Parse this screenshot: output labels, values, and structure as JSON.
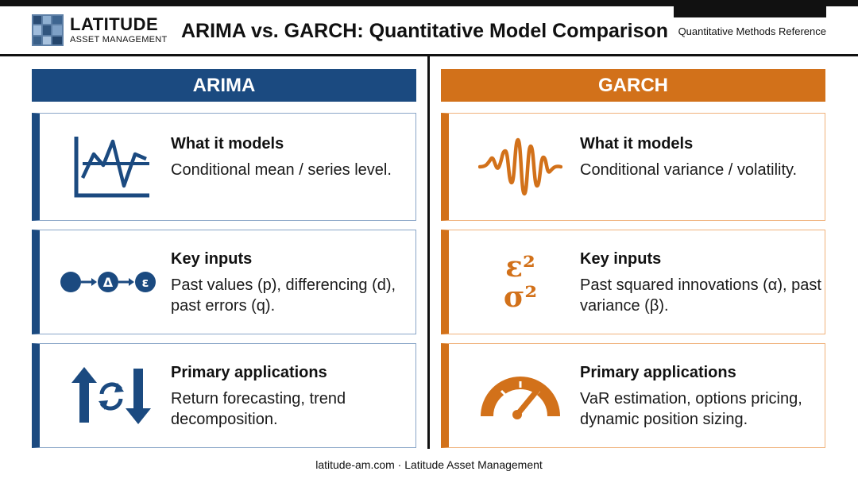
{
  "header": {
    "logo_name": "LATITUDE",
    "logo_sub": "ASSET MANAGEMENT",
    "title": "ARIMA vs. GARCH: Quantitative Model Comparison",
    "reference": "Quantitative Methods Reference"
  },
  "colors": {
    "arima": "#1b4a80",
    "garch": "#d2711a"
  },
  "arima": {
    "heading": "ARIMA",
    "cards": [
      {
        "icon": "line-chart-icon",
        "title": "What it models",
        "body": "Conditional mean / series level."
      },
      {
        "icon": "differencing-flow-icon",
        "title": "Key inputs",
        "body": "Past values (p), differencing (d), past errors (q)."
      },
      {
        "icon": "trend-arrows-icon",
        "title": "Primary applications",
        "body": "Return forecasting, trend decomposition."
      }
    ],
    "flow_labels": [
      "Δ",
      "ε"
    ]
  },
  "garch": {
    "heading": "GARCH",
    "cards": [
      {
        "icon": "volatility-wave-icon",
        "title": "What it models",
        "body": "Conditional variance / volatility."
      },
      {
        "icon": "epsilon-sigma-squared-icon",
        "title": "Key inputs",
        "body": "Past squared innovations (α), past variance (β)."
      },
      {
        "icon": "gauge-icon",
        "title": "Primary applications",
        "body": "VaR estimation, options pricing, dynamic position sizing."
      }
    ],
    "symbols": [
      "ε²",
      "σ²"
    ]
  },
  "footer": "latitude-am.com · Latitude Asset Management"
}
